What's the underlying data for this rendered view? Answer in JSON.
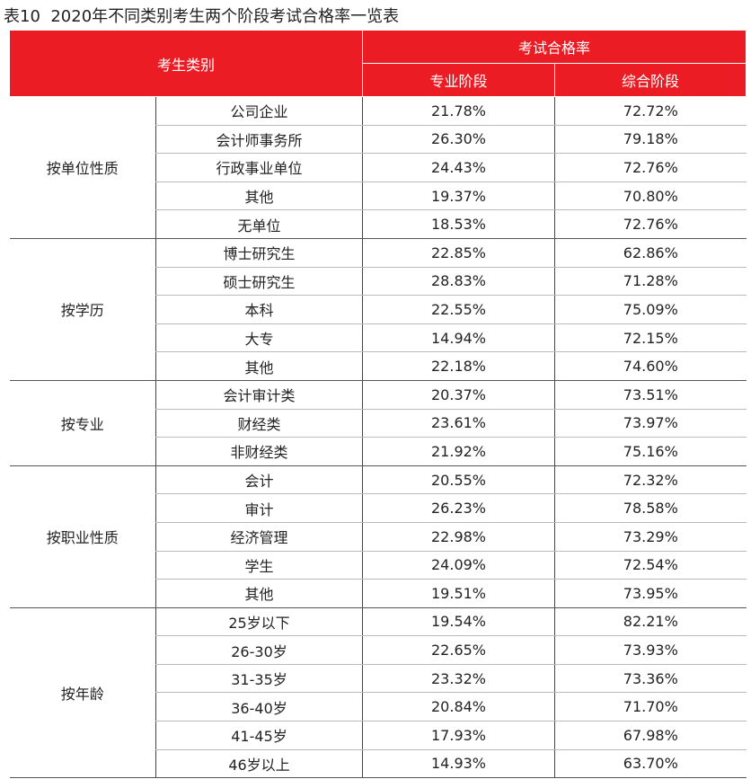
{
  "title": "表10  2020年不同类别考生两个阶段考试合格率一览表",
  "header": {
    "category": "考生类别",
    "pass_rate": "考试合格率",
    "professional": "专业阶段",
    "comprehensive": "综合阶段"
  },
  "groups": [
    {
      "label": "按单位性质",
      "rows": [
        [
          "公司企业",
          "21.78%",
          "72.72%"
        ],
        [
          "会计师事务所",
          "26.30%",
          "79.18%"
        ],
        [
          "行政事业单位",
          "24.43%",
          "72.76%"
        ],
        [
          "其他",
          "19.37%",
          "70.80%"
        ],
        [
          "无单位",
          "18.53%",
          "72.76%"
        ]
      ]
    },
    {
      "label": "按学历",
      "rows": [
        [
          "博士研究生",
          "22.85%",
          "62.86%"
        ],
        [
          "硕士研究生",
          "28.83%",
          "71.28%"
        ],
        [
          "本科",
          "22.55%",
          "75.09%"
        ],
        [
          "大专",
          "14.94%",
          "72.15%"
        ],
        [
          "其他",
          "22.18%",
          "74.60%"
        ]
      ]
    },
    {
      "label": "按专业",
      "rows": [
        [
          "会计审计类",
          "20.37%",
          "73.51%"
        ],
        [
          "财经类",
          "23.61%",
          "73.97%"
        ],
        [
          "非财经类",
          "21.92%",
          "75.16%"
        ]
      ]
    },
    {
      "label": "按职业性质",
      "rows": [
        [
          "会计",
          "20.55%",
          "72.32%"
        ],
        [
          "审计",
          "26.23%",
          "78.58%"
        ],
        [
          "经济管理",
          "22.98%",
          "73.29%"
        ],
        [
          "学生",
          "24.09%",
          "72.54%"
        ],
        [
          "其他",
          "19.51%",
          "73.95%"
        ]
      ]
    },
    {
      "label": "按年龄",
      "rows": [
        [
          "25岁以下",
          "19.54%",
          "82.21%"
        ],
        [
          "26-30岁",
          "22.65%",
          "73.93%"
        ],
        [
          "31-35岁",
          "23.32%",
          "73.36%"
        ],
        [
          "36-40岁",
          "20.84%",
          "71.70%"
        ],
        [
          "41-45岁",
          "17.93%",
          "67.98%"
        ],
        [
          "46岁以上",
          "14.93%",
          "63.70%"
        ]
      ]
    }
  ]
}
